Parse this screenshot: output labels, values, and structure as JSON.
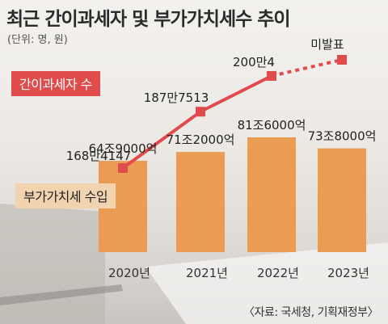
{
  "header": {
    "title": "최근 간이과세자 및 부가가치세수 추이",
    "unit": "(단위: 명, 원)"
  },
  "legend": {
    "line": "간이과세자 수",
    "bar": "부가가치세 수입"
  },
  "source": "〈자료: 국세청, 기획재정부〉",
  "colors": {
    "bar": "#ea9c52",
    "line": "#e04b4b",
    "legend_bar_bg": "#f1d3b0"
  },
  "chart_data": {
    "type": "bar+line",
    "categories": [
      "2020년",
      "2021년",
      "2022년",
      "2023년"
    ],
    "series": [
      {
        "name": "부가가치세 수입",
        "type": "bar",
        "values": [
          64.9,
          71.2,
          81.6,
          73.8
        ],
        "unit": "조원",
        "labels": [
          "64조9000억",
          "71조2000억",
          "81조6000억",
          "73조8000억"
        ]
      },
      {
        "name": "간이과세자 수",
        "type": "line",
        "values": [
          1684147,
          1877513,
          2000004,
          null
        ],
        "labels": [
          "168만4147",
          "187만7513",
          "200만4",
          "미발표"
        ],
        "pending_last": true
      }
    ]
  }
}
